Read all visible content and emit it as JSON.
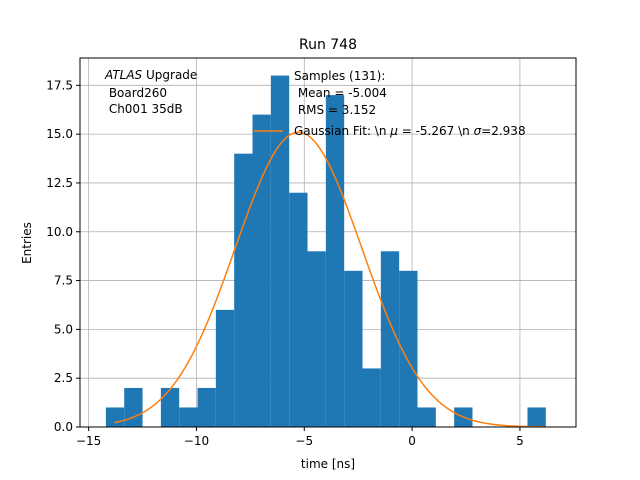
{
  "chart_data": {
    "type": "bar",
    "title": "Run 748",
    "xlabel": "time [ns]",
    "ylabel": "Entries",
    "xlim": [
      -15.4,
      7.6
    ],
    "ylim": [
      0,
      18.9
    ],
    "grid": true,
    "xticks": [
      -15,
      -10,
      -5,
      0,
      5
    ],
    "xtick_labels": [
      "−15",
      "−10",
      "−5",
      "0",
      "5"
    ],
    "yticks": [
      0,
      2.5,
      5,
      7.5,
      10,
      12.5,
      15,
      17.5
    ],
    "ytick_labels": [
      "0.0",
      "2.5",
      "5.0",
      "7.5",
      "10.0",
      "12.5",
      "15.0",
      "17.5"
    ],
    "bin_edges": [
      -14.2,
      -13.35,
      -12.5,
      -11.65,
      -10.8,
      -9.95,
      -9.1,
      -8.25,
      -7.4,
      -6.55,
      -5.7,
      -4.85,
      -4.0,
      -3.15,
      -2.3,
      -1.45,
      -0.6,
      0.25,
      1.1,
      1.95,
      2.8,
      3.65,
      4.5,
      5.35,
      6.2
    ],
    "histogram": [
      1,
      2,
      0,
      2,
      1,
      2,
      6,
      14,
      16,
      18,
      12,
      9,
      17,
      8,
      3,
      9,
      8,
      1,
      0,
      1,
      0,
      0,
      0,
      1
    ],
    "histogram_color": "#1f77b4",
    "fit_color": "#ff7f0e",
    "fit": {
      "amplitude": 15.1,
      "mu": -5.267,
      "sigma": 2.938,
      "x_range": [
        -13.8,
        6.2
      ]
    },
    "annotation": {
      "italic": "ATLAS",
      "line1_rest": " Upgrade",
      "line2": " Board260",
      "line3": " Ch001 35dB"
    },
    "legend": {
      "placement": "upper-right",
      "samples_line1": "Samples (131):",
      "samples_line2": " Mean = -5.004",
      "samples_line3": " RMS = 3.152",
      "fit_prefix": "Gaussian Fit: \\n ",
      "fit_mu_symbol": "μ",
      "fit_mid": " = -5.267 \\n ",
      "fit_sigma_symbol": "σ",
      "fit_suffix": "=2.938"
    }
  }
}
